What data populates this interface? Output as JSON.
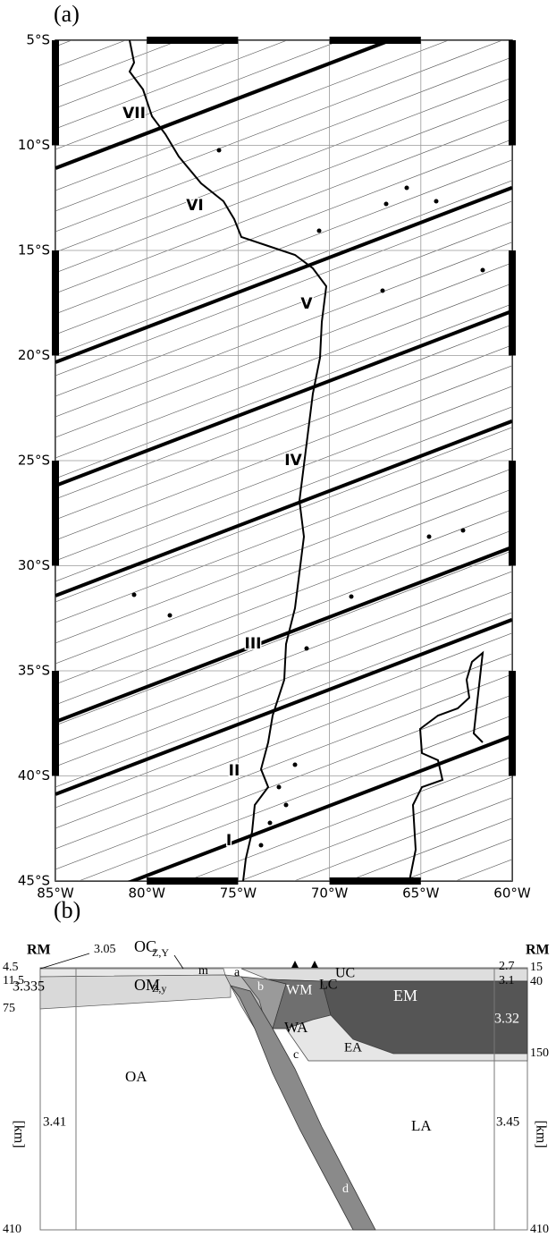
{
  "panel_a": {
    "label": "(a)",
    "lat_labels": [
      "5°S",
      "10°S",
      "15°S",
      "20°S",
      "25°S",
      "30°S",
      "35°S",
      "40°S",
      "45°S"
    ],
    "lon_labels": [
      "85°W",
      "80°W",
      "75°W",
      "70°W",
      "65°W",
      "60°W"
    ],
    "profiles": [
      "VII",
      "VI",
      "V",
      "IV",
      "III",
      "II",
      "I"
    ]
  },
  "panel_b": {
    "label": "(b)",
    "texts": [
      "RM",
      "3.05",
      "OC",
      "Z,Y",
      "4.5",
      "11.5",
      "3.335",
      "OM",
      "Z,y",
      "75",
      "m",
      "a",
      "b",
      "UC",
      "LC",
      "WM",
      "EM",
      "WA",
      "EA",
      "c",
      "OA",
      "LA",
      "d",
      "[km]",
      "[km]",
      "3.41",
      "3.45",
      "RM",
      "2.7",
      "15",
      "3.1",
      "40",
      "3.32",
      "150",
      "410",
      "410"
    ]
  }
}
